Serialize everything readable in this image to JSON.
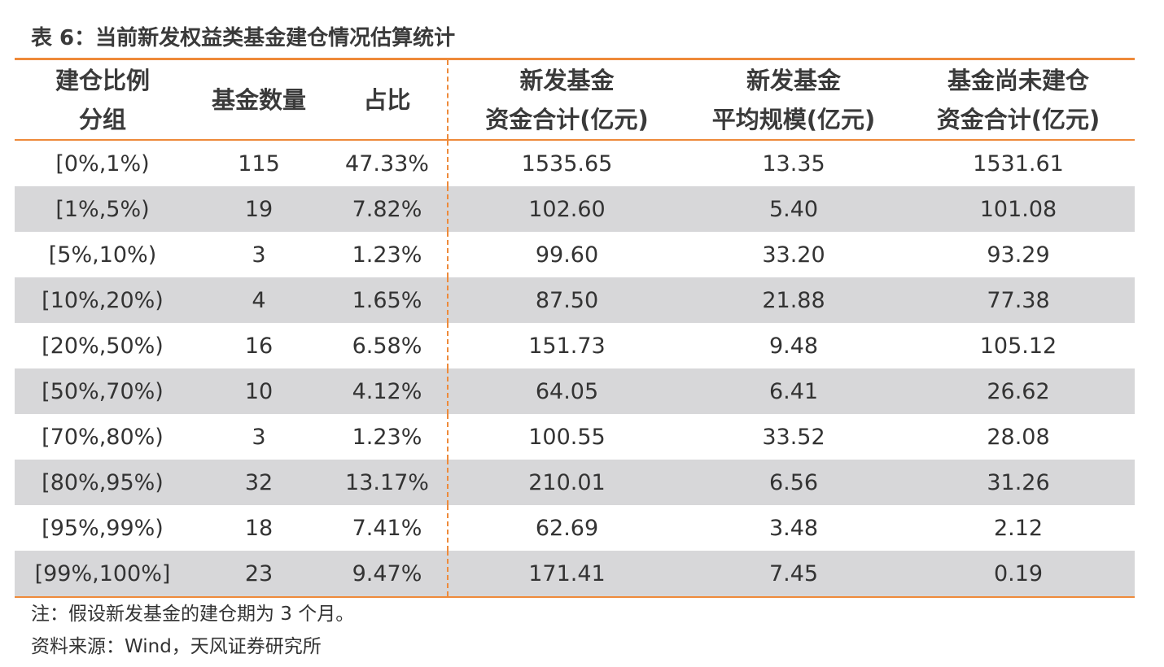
{
  "title": "表 6：当前新发权益类基金建仓情况估算统计",
  "table": {
    "headers": [
      [
        "建仓比例",
        "分组"
      ],
      [
        "基金数量"
      ],
      [
        "占比"
      ],
      [
        "新发基金",
        "资金合计(亿元)"
      ],
      [
        "新发基金",
        "平均规模(亿元)"
      ],
      [
        "基金尚未建仓",
        "资金合计(亿元)"
      ]
    ],
    "rows": [
      [
        "[0%,1%)",
        "115",
        "47.33%",
        "1535.65",
        "13.35",
        "1531.61"
      ],
      [
        "[1%,5%)",
        "19",
        "7.82%",
        "102.60",
        "5.40",
        "101.08"
      ],
      [
        "[5%,10%)",
        "3",
        "1.23%",
        "99.60",
        "33.20",
        "93.29"
      ],
      [
        "[10%,20%)",
        "4",
        "1.65%",
        "87.50",
        "21.88",
        "77.38"
      ],
      [
        "[20%,50%)",
        "16",
        "6.58%",
        "151.73",
        "9.48",
        "105.12"
      ],
      [
        "[50%,70%)",
        "10",
        "4.12%",
        "64.05",
        "6.41",
        "26.62"
      ],
      [
        "[70%,80%)",
        "3",
        "1.23%",
        "100.55",
        "33.52",
        "28.08"
      ],
      [
        "[80%,95%)",
        "32",
        "13.17%",
        "210.01",
        "6.56",
        "31.26"
      ],
      [
        "[95%,99%)",
        "18",
        "7.41%",
        "62.69",
        "3.48",
        "2.12"
      ],
      [
        "[99%,100%]",
        "23",
        "9.47%",
        "171.41",
        "7.45",
        "0.19"
      ]
    ]
  },
  "notes": {
    "note": "注：假设新发基金的建仓期为 3 个月。",
    "source": "资料来源：Wind，天风证券研究所"
  },
  "colors": {
    "accent": "#ee8a3a",
    "row_shade": "#d7d7d9"
  }
}
